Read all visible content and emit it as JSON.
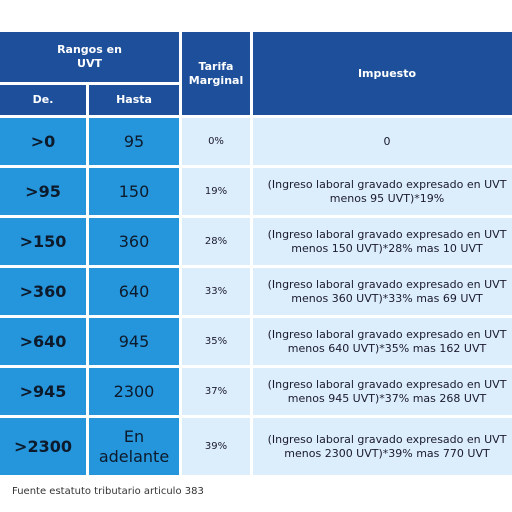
{
  "header": {
    "rangos": "Rangos en\nUVT",
    "de": "De.",
    "hasta": "Hasta",
    "tarifa": "Tarifa\nMarginal",
    "impuesto": "Impuesto"
  },
  "rows": [
    {
      "de": ">0",
      "hasta": "95",
      "tarifa": "0%",
      "impuesto": "0"
    },
    {
      "de": ">95",
      "hasta": "150",
      "tarifa": "19%",
      "impuesto": "(Ingreso laboral gravado expresado en UVT menos 95 UVT)*19%"
    },
    {
      "de": ">150",
      "hasta": "360",
      "tarifa": "28%",
      "impuesto": "(Ingreso laboral gravado expresado en UVT menos 150 UVT)*28% mas 10 UVT"
    },
    {
      "de": ">360",
      "hasta": "640",
      "tarifa": "33%",
      "impuesto": "(Ingreso laboral gravado expresado en UVT menos 360 UVT)*33% mas 69 UVT"
    },
    {
      "de": ">640",
      "hasta": "945",
      "tarifa": "35%",
      "impuesto": "(Ingreso laboral gravado expresado en UVT menos 640 UVT)*35% mas 162 UVT"
    },
    {
      "de": ">945",
      "hasta": "2300",
      "tarifa": "37%",
      "impuesto": "(Ingreso laboral gravado expresado en UVT menos 945 UVT)*37% mas 268 UVT"
    },
    {
      "de": ">2300",
      "hasta": "En adelante",
      "tarifa": "39%",
      "impuesto": "(Ingreso laboral gravado expresado en UVT menos 2300 UVT)*39% mas 770 UVT"
    }
  ],
  "footer": "Fuente estatuto tributario articulo 383",
  "colors": {
    "header": "#1d4f9a",
    "range_cells": "#2596dc",
    "light_cells": "#dcedfb"
  }
}
